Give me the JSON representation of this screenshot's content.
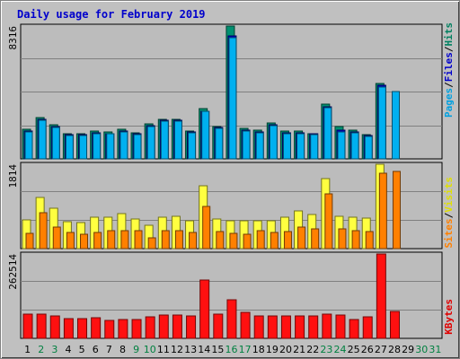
{
  "chart_data": {
    "type": "bar",
    "title": "Daily usage for February 2019",
    "categories": [
      "1",
      "2",
      "3",
      "4",
      "5",
      "6",
      "7",
      "8",
      "9",
      "10",
      "11",
      "12",
      "13",
      "14",
      "15",
      "16",
      "17",
      "18",
      "19",
      "20",
      "21",
      "22",
      "23",
      "24",
      "25",
      "26",
      "27",
      "28",
      "29",
      "30",
      "31"
    ],
    "weekend_days": [
      "2",
      "3",
      "9",
      "10",
      "16",
      "17",
      "23",
      "24",
      "30",
      "31"
    ],
    "panels": [
      {
        "name": "hits-files-pages",
        "ymax_label": "8316",
        "ylim": [
          0,
          8316
        ],
        "legend": [
          {
            "text": "Pages",
            "color": "#00a0e0"
          },
          {
            "text": "/",
            "color": "#000000"
          },
          {
            "text": "Files",
            "color": "#0000cc"
          },
          {
            "text": "/",
            "color": "#000000"
          },
          {
            "text": "Hits",
            "color": "#008060"
          }
        ],
        "series": [
          {
            "name": "Hits",
            "color": "#009070",
            "values": [
              1850,
              2600,
              2150,
              1600,
              1600,
              1750,
              1700,
              1850,
              1650,
              2200,
              2500,
              2500,
              1750,
              3150,
              2050,
              8316,
              1900,
              1800,
              2250,
              1750,
              1750,
              1600,
              3400,
              2000,
              1800,
              1500,
              4700,
              0,
              0,
              0,
              0
            ]
          },
          {
            "name": "Files",
            "color": "#0000cc",
            "values": [
              1750,
              2450,
              2000,
              1500,
              1500,
              1650,
              1600,
              1750,
              1550,
              2100,
              2400,
              2400,
              1700,
              3000,
              1950,
              7700,
              1800,
              1700,
              2150,
              1650,
              1650,
              1550,
              3250,
              1800,
              1700,
              1450,
              4600,
              0,
              0,
              0,
              0
            ]
          },
          {
            "name": "Pages",
            "color": "#00b0f0",
            "values": [
              1700,
              2400,
              1950,
              1450,
              1450,
              1600,
              1550,
              1700,
              1500,
              2050,
              2350,
              2350,
              1650,
              2950,
              1900,
              7600,
              1750,
              1650,
              2100,
              1600,
              1600,
              1500,
              3200,
              1700,
              1650,
              1400,
              4500,
              4200,
              0,
              0,
              0
            ]
          }
        ]
      },
      {
        "name": "visits-sites",
        "ymax_label": "1814",
        "ylim": [
          0,
          1814
        ],
        "legend": [
          {
            "text": "Sites",
            "color": "#ff8000"
          },
          {
            "text": "/",
            "color": "#000000"
          },
          {
            "text": "Visits",
            "color": "#e0e000"
          }
        ],
        "series": [
          {
            "name": "Visits",
            "color": "#ffff40",
            "values": [
              620,
              1100,
              870,
              580,
              560,
              680,
              680,
              760,
              640,
              510,
              680,
              690,
              600,
              1350,
              640,
              590,
              590,
              590,
              600,
              680,
              820,
              730,
              1510,
              690,
              680,
              650,
              1814,
              0,
              0,
              0,
              0
            ]
          },
          {
            "name": "Sites",
            "color": "#ff8000",
            "values": [
              320,
              780,
              460,
              340,
              310,
              350,
              380,
              380,
              380,
              230,
              380,
              380,
              340,
              900,
              370,
              320,
              310,
              390,
              350,
              370,
              460,
              430,
              1180,
              420,
              390,
              360,
              1630,
              1650,
              0,
              0,
              0
            ]
          }
        ]
      },
      {
        "name": "kbytes",
        "ymax_label": "262514",
        "ylim": [
          0,
          262514
        ],
        "legend": [
          {
            "text": "KBytes",
            "color": "#e00000"
          }
        ],
        "series": [
          {
            "name": "KBytes",
            "color": "#ff1010",
            "values": [
              75000,
              75000,
              69000,
              62000,
              62000,
              64000,
              56000,
              60000,
              60000,
              66000,
              73000,
              73000,
              69000,
              181000,
              75000,
              120000,
              80000,
              70000,
              69000,
              69000,
              69000,
              69000,
              75000,
              73000,
              60000,
              66000,
              262514,
              85000,
              0,
              0,
              0
            ]
          }
        ]
      }
    ],
    "xlabel": "",
    "ylabel": "",
    "grid": true,
    "legend_position": "right-vertical"
  }
}
